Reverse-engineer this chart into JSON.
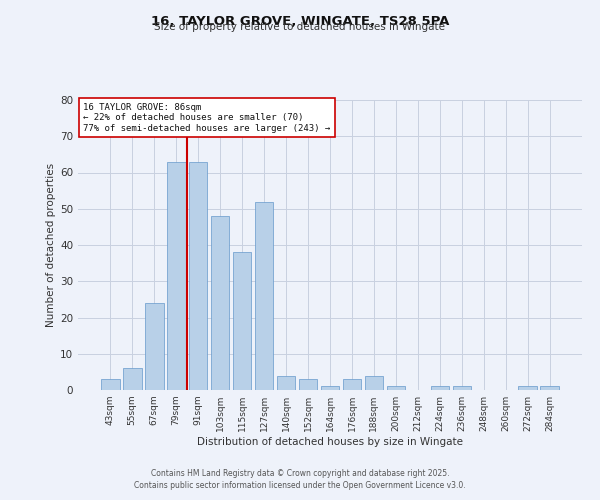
{
  "title": "16, TAYLOR GROVE, WINGATE, TS28 5PA",
  "subtitle": "Size of property relative to detached houses in Wingate",
  "xlabel": "Distribution of detached houses by size in Wingate",
  "ylabel": "Number of detached properties",
  "bar_labels": [
    "43sqm",
    "55sqm",
    "67sqm",
    "79sqm",
    "91sqm",
    "103sqm",
    "115sqm",
    "127sqm",
    "140sqm",
    "152sqm",
    "164sqm",
    "176sqm",
    "188sqm",
    "200sqm",
    "212sqm",
    "224sqm",
    "236sqm",
    "248sqm",
    "260sqm",
    "272sqm",
    "284sqm"
  ],
  "bar_values": [
    3,
    6,
    24,
    63,
    63,
    48,
    38,
    52,
    4,
    3,
    1,
    3,
    4,
    1,
    0,
    1,
    1,
    0,
    0,
    1,
    1
  ],
  "bar_color": "#b8d0e8",
  "bar_edge_color": "#6699cc",
  "vline_x": 3.5,
  "vline_color": "#cc0000",
  "ylim": [
    0,
    80
  ],
  "yticks": [
    0,
    10,
    20,
    30,
    40,
    50,
    60,
    70,
    80
  ],
  "annotation_title": "16 TAYLOR GROVE: 86sqm",
  "annotation_line1": "← 22% of detached houses are smaller (70)",
  "annotation_line2": "77% of semi-detached houses are larger (243) →",
  "annotation_box_color": "#ffffff",
  "annotation_box_edge": "#cc0000",
  "bg_color": "#eef2fa",
  "grid_color": "#c8d0e0",
  "footer1": "Contains HM Land Registry data © Crown copyright and database right 2025.",
  "footer2": "Contains public sector information licensed under the Open Government Licence v3.0."
}
